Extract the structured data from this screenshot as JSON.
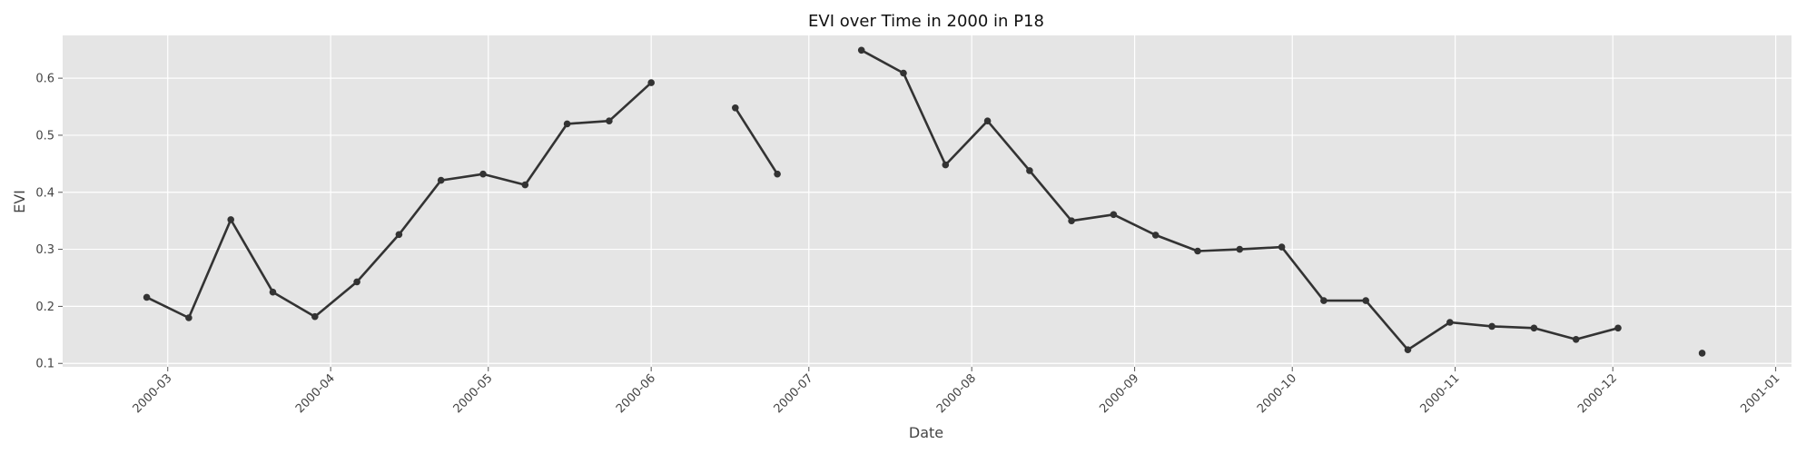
{
  "chart_data": {
    "type": "line",
    "title": "EVI over Time in 2000 in P18",
    "xlabel": "Date",
    "ylabel": "EVI",
    "xlim": [
      "2000-02-10",
      "2001-01-04"
    ],
    "ylim": [
      0.094,
      0.675
    ],
    "x_ticks": [
      "2000-03-01",
      "2000-04-01",
      "2000-05-01",
      "2000-06-01",
      "2000-07-01",
      "2000-08-01",
      "2000-09-01",
      "2000-10-01",
      "2000-11-01",
      "2000-12-01",
      "2001-01-01"
    ],
    "x_tick_labels": [
      "2000-03",
      "2000-04",
      "2000-05",
      "2000-06",
      "2000-07",
      "2000-08",
      "2000-09",
      "2000-10",
      "2000-11",
      "2000-12",
      "2001-01"
    ],
    "y_ticks": [
      0.1,
      0.2,
      0.3,
      0.4,
      0.5,
      0.6
    ],
    "y_tick_labels": [
      "0.1",
      "0.2",
      "0.3",
      "0.4",
      "0.5",
      "0.6"
    ],
    "grid": true,
    "style": "ggplot",
    "colors": {
      "line": "#333333",
      "plot_bg": "#e5e5e5",
      "grid": "#ffffff"
    },
    "series": [
      {
        "x": [
          "2000-02-26",
          "2000-03-05",
          "2000-03-13",
          "2000-03-21",
          "2000-03-29",
          "2000-04-06",
          "2000-04-14",
          "2000-04-22",
          "2000-04-30",
          "2000-05-08",
          "2000-05-16",
          "2000-05-24",
          "2000-06-01",
          "2000-06-09",
          "2000-06-17",
          "2000-06-25",
          "2000-07-03",
          "2000-07-11",
          "2000-07-19",
          "2000-07-27",
          "2000-08-04",
          "2000-08-12",
          "2000-08-20",
          "2000-08-28",
          "2000-09-05",
          "2000-09-13",
          "2000-09-21",
          "2000-09-29",
          "2000-10-07",
          "2000-10-15",
          "2000-10-23",
          "2000-10-31",
          "2000-11-08",
          "2000-11-16",
          "2000-11-24",
          "2000-12-02",
          "2000-12-10",
          "2000-12-18"
        ],
        "y": [
          0.216,
          0.18,
          0.352,
          0.225,
          0.182,
          0.243,
          0.326,
          0.421,
          0.432,
          0.413,
          0.52,
          0.525,
          0.592,
          null,
          0.548,
          0.432,
          null,
          0.649,
          0.609,
          0.448,
          0.525,
          0.438,
          0.35,
          0.361,
          0.325,
          0.297,
          0.3,
          0.304,
          0.21,
          0.21,
          0.124,
          0.172,
          0.165,
          0.162,
          0.142,
          0.162,
          null,
          0.118
        ]
      }
    ]
  }
}
